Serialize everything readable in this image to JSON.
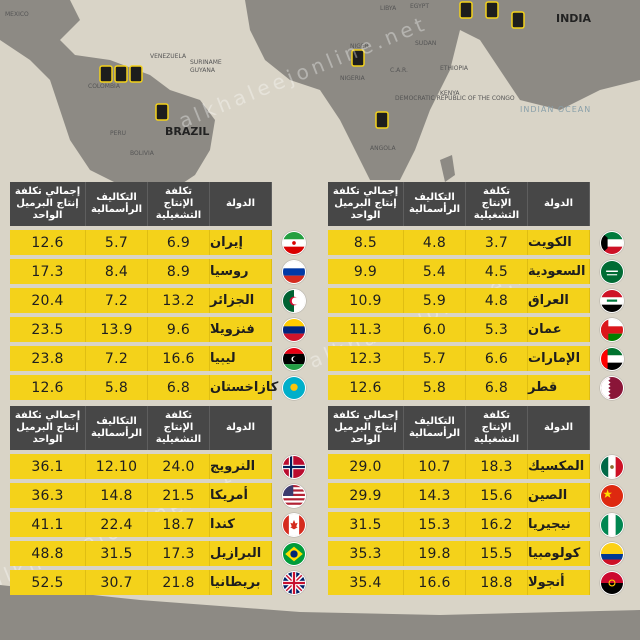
{
  "map": {
    "labels": [
      "MEXICO",
      "COLOMBIA",
      "BRAZIL",
      "PERU",
      "BOLIVIA",
      "INDIA",
      "EGYPT",
      "LIBYA",
      "NIGER",
      "SUDAN",
      "GUYANA",
      "SURINAME",
      "VENEZUELA",
      "INDIAN OCEAN",
      "NIGERIA",
      "ETHIOPIA",
      "KENYA",
      "ANGOLA",
      "C.A.R.",
      "DEMOCRATIC REPUBLIC OF THE CONGO"
    ],
    "watermark": "alkhaleejonline.net",
    "colors": {
      "land": "#8d8a84",
      "sea": "#d9d4c7",
      "cell": "#f4d21a",
      "header": "#474747"
    }
  },
  "headers": {
    "total": "إجمالي تكلفة إنتاج البرميل الواحد",
    "capital": "التكاليف الرأسمالية",
    "operating": "تكلفة الإنتاج التشغيلية",
    "country": "الدولة"
  },
  "chart_data": [
    {
      "type": "table",
      "columns": [
        "الدولة",
        "تكلفة الإنتاج التشغيلية",
        "التكاليف الرأسمالية",
        "إجمالي تكلفة إنتاج البرميل الواحد"
      ],
      "rows": [
        {
          "country": "الكويت",
          "flag": "kuwait-flag-icon",
          "operating": "3.7",
          "capital": "4.8",
          "total": "8.5"
        },
        {
          "country": "السعودية",
          "flag": "saudi-flag-icon",
          "operating": "4.5",
          "capital": "5.4",
          "total": "9.9"
        },
        {
          "country": "العراق",
          "flag": "iraq-flag-icon",
          "operating": "4.8",
          "capital": "5.9",
          "total": "10.9"
        },
        {
          "country": "عمان",
          "flag": "oman-flag-icon",
          "operating": "5.3",
          "capital": "6.0",
          "total": "11.3"
        },
        {
          "country": "الإمارات",
          "flag": "uae-flag-icon",
          "operating": "6.6",
          "capital": "5.7",
          "total": "12.3"
        },
        {
          "country": "قطر",
          "flag": "qatar-flag-icon",
          "operating": "6.8",
          "capital": "5.8",
          "total": "12.6"
        }
      ]
    },
    {
      "type": "table",
      "columns": [
        "الدولة",
        "تكلفة الإنتاج التشغيلية",
        "التكاليف الرأسمالية",
        "إجمالي تكلفة إنتاج البرميل الواحد"
      ],
      "rows": [
        {
          "country": "إيران",
          "flag": "iran-flag-icon",
          "operating": "6.9",
          "capital": "5.7",
          "total": "12.6"
        },
        {
          "country": "روسيا",
          "flag": "russia-flag-icon",
          "operating": "8.9",
          "capital": "8.4",
          "total": "17.3"
        },
        {
          "country": "الجزائر",
          "flag": "algeria-flag-icon",
          "operating": "13.2",
          "capital": "7.2",
          "total": "20.4"
        },
        {
          "country": "فنزويلا",
          "flag": "venezuela-flag-icon",
          "operating": "9.6",
          "capital": "13.9",
          "total": "23.5"
        },
        {
          "country": "ليبيا",
          "flag": "libya-flag-icon",
          "operating": "16.6",
          "capital": "7.2",
          "total": "23.8"
        },
        {
          "country": "كازاخستان",
          "flag": "kazakhstan-flag-icon",
          "operating": "6.8",
          "capital": "5.8",
          "total": "12.6"
        }
      ]
    },
    {
      "type": "table",
      "columns": [
        "الدولة",
        "تكلفة الإنتاج التشغيلية",
        "التكاليف الرأسمالية",
        "إجمالي تكلفة إنتاج البرميل الواحد"
      ],
      "rows": [
        {
          "country": "المكسيك",
          "flag": "mexico-flag-icon",
          "operating": "18.3",
          "capital": "10.7",
          "total": "29.0"
        },
        {
          "country": "الصين",
          "flag": "china-flag-icon",
          "operating": "15.6",
          "capital": "14.3",
          "total": "29.9"
        },
        {
          "country": "نيجيريا",
          "flag": "nigeria-flag-icon",
          "operating": "16.2",
          "capital": "15.3",
          "total": "31.5"
        },
        {
          "country": "كولومبيا",
          "flag": "colombia-flag-icon",
          "operating": "15.5",
          "capital": "19.8",
          "total": "35.3"
        },
        {
          "country": "أنجولا",
          "flag": "angola-flag-icon",
          "operating": "18.8",
          "capital": "16.6",
          "total": "35.4"
        }
      ]
    },
    {
      "type": "table",
      "columns": [
        "الدولة",
        "تكلفة الإنتاج التشغيلية",
        "التكاليف الرأسمالية",
        "إجمالي تكلفة إنتاج البرميل الواحد"
      ],
      "rows": [
        {
          "country": "النرويج",
          "flag": "norway-flag-icon",
          "operating": "24.0",
          "capital": "12.10",
          "total": "36.1"
        },
        {
          "country": "أمريكا",
          "flag": "usa-flag-icon",
          "operating": "21.5",
          "capital": "14.8",
          "total": "36.3"
        },
        {
          "country": "كندا",
          "flag": "canada-flag-icon",
          "operating": "18.7",
          "capital": "22.4",
          "total": "41.1"
        },
        {
          "country": "البرازيل",
          "flag": "brazil-flag-icon",
          "operating": "17.3",
          "capital": "31.5",
          "total": "48.8"
        },
        {
          "country": "بريطانيا",
          "flag": "uk-flag-icon",
          "operating": "21.8",
          "capital": "30.7",
          "total": "52.5"
        }
      ]
    }
  ]
}
